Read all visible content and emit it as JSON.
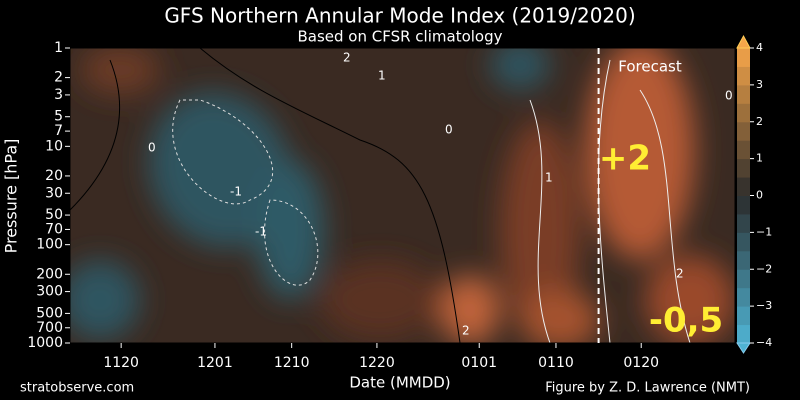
{
  "chart_data": {
    "type": "contour",
    "title": "GFS Northern Annular Mode Index (2019/2020)",
    "subtitle": "Based on CFSR climatology",
    "x_label": "Date (MMDD)",
    "y_label": "Pressure [hPa]",
    "xlim": [
      -6,
      72
    ],
    "xticks": [
      {
        "value": 0,
        "label": "1120"
      },
      {
        "value": 11,
        "label": "1201"
      },
      {
        "value": 20,
        "label": "1210"
      },
      {
        "value": 30,
        "label": "1220"
      },
      {
        "value": 42,
        "label": "0101"
      },
      {
        "value": 51,
        "label": "0110"
      },
      {
        "value": 61,
        "label": "0120"
      }
    ],
    "ylim": [
      1000,
      1
    ],
    "y_log": true,
    "yticks": [
      1,
      2,
      3,
      5,
      7,
      10,
      20,
      30,
      50,
      70,
      100,
      200,
      300,
      500,
      700,
      1000
    ],
    "forecast_start": 56,
    "forecast_label": "Forecast",
    "colorbar_lim": [
      -4,
      4
    ],
    "colorbar_ticks": [
      {
        "value": -4,
        "label": "−4"
      },
      {
        "value": -3,
        "label": "−3"
      },
      {
        "value": -2,
        "label": "−2"
      },
      {
        "value": -1,
        "label": "−1"
      },
      0,
      1,
      2,
      3,
      4
    ],
    "colormap": [
      "#4fb3d3",
      "#2b2b2b",
      "#f5a54a"
    ],
    "contour_labels": [
      "0",
      "-1",
      "1",
      "2"
    ],
    "annotations": [
      "+2",
      "-0,5"
    ],
    "source": "stratobserve.com",
    "credit": "Figure by Z. D. Lawrence (NMT)"
  }
}
